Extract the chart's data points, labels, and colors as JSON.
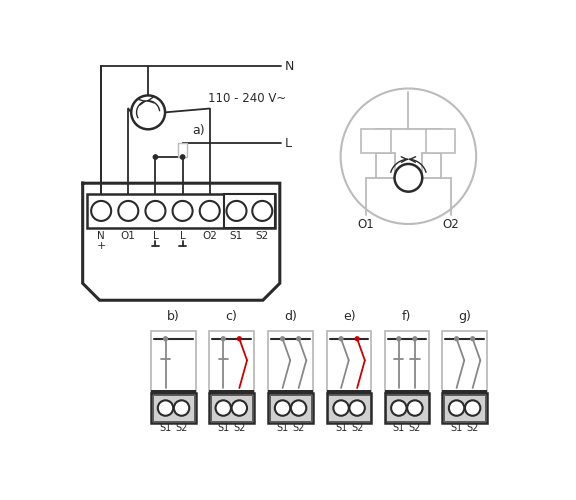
{
  "bg_color": "#ffffff",
  "line_color": "#2a2a2a",
  "red_color": "#cc0000",
  "gray_color": "#888888",
  "light_gray": "#bbbbbb",
  "snubber_gray": "#aaaaaa",
  "terminal_labels": [
    "N",
    "O1",
    "L",
    "L",
    "O2",
    "S1",
    "S2"
  ],
  "voltage_text": "110 - 240 V~",
  "label_a": "a)",
  "label_N": "N",
  "label_L": "L",
  "bottom_labels": [
    "b)",
    "c)",
    "d)",
    "e)",
    "f)",
    "g)"
  ]
}
